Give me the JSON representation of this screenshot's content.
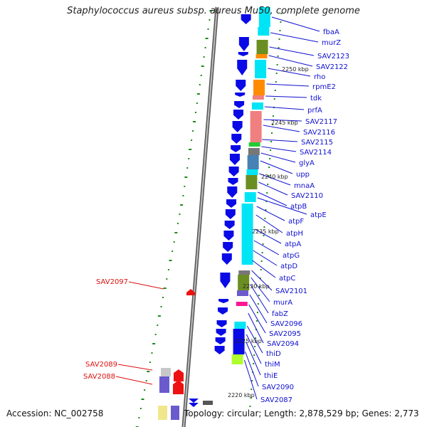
{
  "title": "Staphylococcus aureus subsp. aureus Mu50, complete genome",
  "accession": "Accession: NC_002758",
  "topology": "Topology: circular; Length: 2,878,529 bp; Genes: 2,773",
  "kbp_markers": [
    "2250 kbp",
    "2245 kbp",
    "2240 kbp",
    "2235 kbp",
    "2230 kbp",
    "2225 kbp",
    "2220 kbp"
  ],
  "genes_right": [
    "fbaA",
    "murZ",
    "SAV2123",
    "SAV2122",
    "rho",
    "rpmE2",
    "tdk",
    "prfA",
    "SAV2117",
    "SAV2116",
    "SAV2115",
    "SAV2114",
    "glyA",
    "upp",
    "mnaA",
    "SAV2110",
    "atpB",
    "atpE",
    "atpF",
    "atpH",
    "atpA",
    "atpG",
    "atpD",
    "atpC",
    "SAV2101",
    "murA",
    "fabZ",
    "SAV2096",
    "SAV2095",
    "SAV2094",
    "thiD",
    "thiM",
    "thiE",
    "SAV2090",
    "SAV2087"
  ],
  "genes_left": [
    "SAV2097",
    "SAV2089",
    "SAV2088"
  ],
  "colors": {
    "forward": "#0a0ae6",
    "reverse": "#ee1111",
    "cyan": "#00e5f5",
    "olive": "#6b8e23",
    "salmon": "#f08080",
    "orange": "#ff8c00",
    "link_blue": "#1010d0",
    "link_red": "#dd1111",
    "tick_green": "#1a8a1a"
  }
}
